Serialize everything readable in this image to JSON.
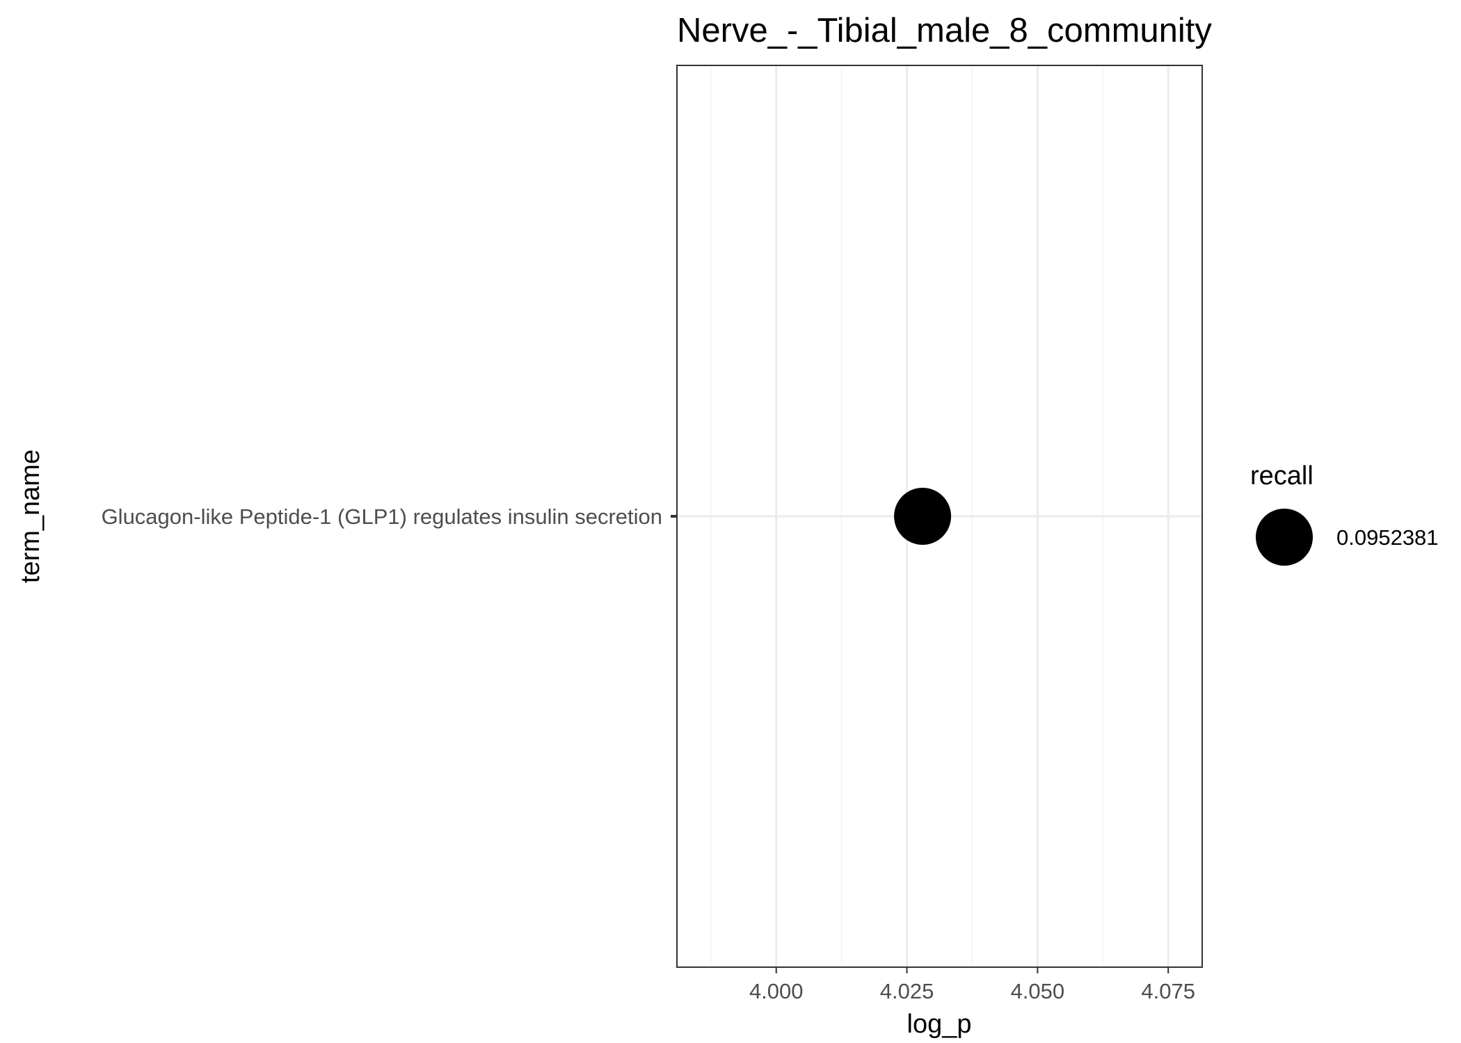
{
  "chart_data": {
    "type": "scatter",
    "title": "Nerve_-_Tibial_male_8_community",
    "xlabel": "log_p",
    "ylabel": "term_name",
    "xlim": [
      3.981,
      4.0815
    ],
    "x_ticks": [
      "4.000",
      "4.025",
      "4.050",
      "4.075"
    ],
    "x_tick_values": [
      4.0,
      4.025,
      4.05,
      4.075
    ],
    "x_minor_values": [
      3.9875,
      4.0125,
      4.0375,
      4.0625
    ],
    "categories": [
      "Glucagon-like Peptide-1 (GLP1) regulates insulin secretion"
    ],
    "points": [
      {
        "term_name": "Glucagon-like Peptide-1 (GLP1) regulates insulin secretion",
        "log_p": 4.028,
        "recall": 0.0952381
      }
    ],
    "grid": true,
    "legend": {
      "title": "recall",
      "position": "right",
      "entries": [
        {
          "label": "0.0952381",
          "value": 0.0952381
        }
      ]
    },
    "colors": {
      "point": "#000000",
      "grid_major": "#ebebeb",
      "grid_minor": "#f4f4f4",
      "panel_border": "#333333",
      "tick_text": "#4d4d4d"
    }
  }
}
